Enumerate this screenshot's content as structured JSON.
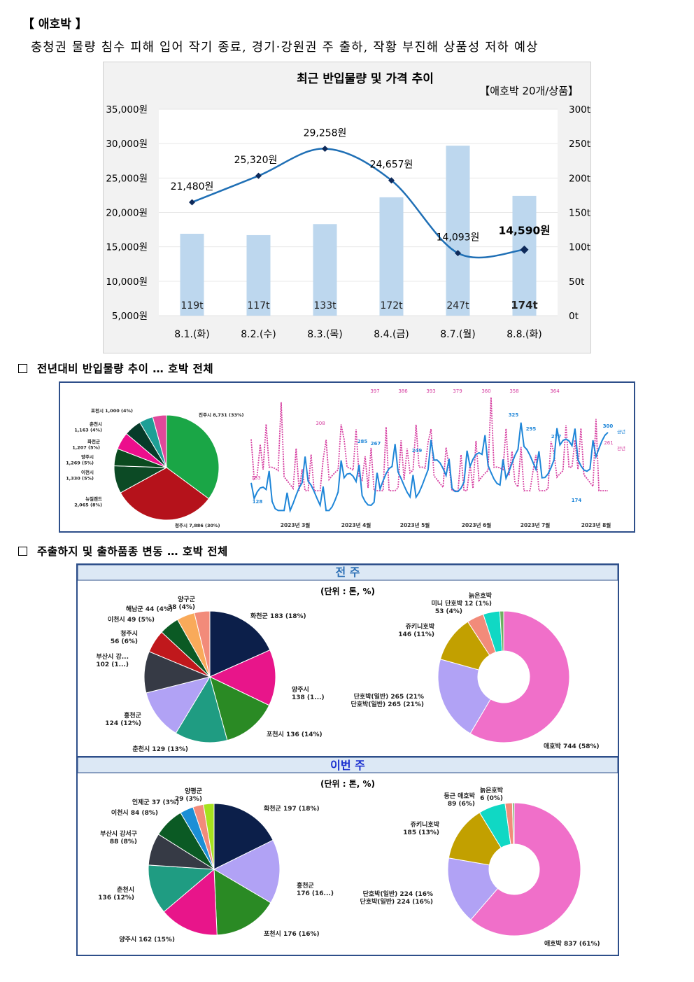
{
  "header": {
    "title": "【 애호박 】",
    "subtitle": "충청권 물량 침수 피해 입어 작기 종료, 경기·강원권 주 출하, 작황 부진해 상품성 저하 예상"
  },
  "main_chart": {
    "title": "최근 반입물량 및 가격 추이",
    "unit_note": "【애호박 20개/상품】",
    "left_ticks": [
      "35,000원",
      "30,000원",
      "25,000원",
      "20,000원",
      "15,000원",
      "10,000원",
      "5,000원"
    ],
    "right_ticks": [
      "300t",
      "250t",
      "200t",
      "150t",
      "100t",
      "50t",
      "0t"
    ]
  },
  "chart_data": {
    "type": "bar",
    "categories": [
      "8.1.(화)",
      "8.2.(수)",
      "8.3.(목)",
      "8.4.(금)",
      "8.7.(월)",
      "8.8.(화)"
    ],
    "series": [
      {
        "values": [
          119,
          117,
          133,
          172,
          247,
          174
        ],
        "labels": [
          "119t",
          "117t",
          "133t",
          "172t",
          "247t",
          "174t"
        ],
        "color": "#bdd7ee"
      },
      {
        "values": [
          21480,
          25320,
          29258,
          24657,
          14093,
          14590
        ],
        "labels": [
          "21,480원",
          "25,320원",
          "29,258원",
          "24,657원",
          "14,093원",
          "14,590원"
        ],
        "color": "#1f6fb5"
      }
    ],
    "ylim_left": [
      5000,
      35000
    ],
    "ylim_right": [
      0,
      300
    ]
  },
  "section1": {
    "heading": "전년대비 반입물량 추이 … 호박 전체",
    "pie_labels": [
      "진주시 8,731 (33%)",
      "청주시 7,886 (30%)",
      "뉴질랜드 2,065 (8%)",
      "이천시 1,330 (5%)",
      "양주시 1,269 (5%)",
      "화천군 1,207 (5%)",
      "춘천시 1,163 (4%)",
      "포천시 1,000 (4%)"
    ],
    "pie_values": [
      33,
      30,
      8,
      5,
      5,
      5,
      4,
      4
    ],
    "pie_colors": [
      "#1aa646",
      "#b5121b",
      "#0c4a25",
      "#0a4a1f",
      "#ec0e8c",
      "#073b2a",
      "#1e9f96",
      "#e0489a"
    ],
    "line_peaks_last": [
      "397",
      "386",
      "393",
      "379",
      "360",
      "358",
      "364"
    ],
    "line_labels_last_other": [
      "308",
      "183",
      "261"
    ],
    "line_labels_this": [
      "128",
      "285",
      "267",
      "249",
      "325",
      "295",
      "277",
      "300",
      "174",
      "212"
    ],
    "x_labels": [
      "2023년 3월",
      "2023년 4월",
      "2023년 5월",
      "2023년 6월",
      "2023년 7월",
      "2023년 8월"
    ],
    "legend": [
      "금년",
      "전년"
    ]
  },
  "section2": {
    "heading": "주출하지 및 출하품종 변동 … 호박 전체",
    "last_week": {
      "band": "전 주",
      "unit": "(단위 : 톤, %)",
      "region_labels": [
        "화천군 183 (18%)",
        "양주시 138 (1...)",
        "포천시 136 (14%)",
        "춘천시 129 (13%)",
        "홍천군 124 (12%)",
        "부산시 강... 102 (1...)",
        "청주시 56 (6%)",
        "이천시 49 (5%)",
        "해남군 44 (4%)",
        "양구군 38 (4%)"
      ],
      "region_values": [
        183,
        138,
        136,
        129,
        124,
        102,
        56,
        49,
        44,
        38
      ],
      "variety_labels": [
        "애호박 744 (58%)",
        "단호박(일반) 265 (21%)",
        "쥬키니호박 146 (11%)",
        "미니 단호박 53 (4%)",
        "늙은호박 12 (1%)"
      ],
      "variety_values": [
        744,
        265,
        146,
        53,
        52,
        12
      ]
    },
    "this_week": {
      "band": "이번 주",
      "unit": "(단위 : 톤, %)",
      "region_labels": [
        "화천군 197 (18%)",
        "홍천군 176 (16...)",
        "포천시 176 (16%)",
        "양주시 162 (15%)",
        "춘천시 136 (12%)",
        "부산시 강서구 88 (8%)",
        "이천시 84 (8%)",
        "인제군 37 (3%)",
        "양평군 29 (3%)"
      ],
      "region_values": [
        197,
        176,
        176,
        162,
        136,
        88,
        84,
        37,
        29,
        29
      ],
      "variety_labels": [
        "애호박 837 (61%)",
        "단호박(일반) 224 (16%)",
        "쥬키니호박 185 (13%)",
        "둥근 애호박 89 (6%)",
        "늙은호박 6 (0%)"
      ],
      "variety_values": [
        837,
        224,
        185,
        89,
        24,
        6
      ]
    },
    "region_colors": [
      "#0c1f4a",
      "#e8158a",
      "#2a8a24",
      "#1f9c82",
      "#b1a2f5",
      "#363a45",
      "#c0181c",
      "#0b5a24",
      "#f9aa5a",
      "#f28b7a"
    ],
    "region_colors_this": [
      "#0c1f4a",
      "#b1a2f5",
      "#2a8a24",
      "#e8158a",
      "#1f9c82",
      "#363a45",
      "#0b5a24",
      "#1b8fd6",
      "#f28b7a",
      "#a6e21e"
    ],
    "variety_colors": [
      "#f06fc9",
      "#b1a2f5",
      "#c2a000",
      "#f28b7a",
      "#10d8c4",
      "#6cb060"
    ],
    "variety_colors_this": [
      "#f06fc9",
      "#b1a2f5",
      "#c2a000",
      "#10d8c4",
      "#f28b7a",
      "#6cb060"
    ]
  }
}
